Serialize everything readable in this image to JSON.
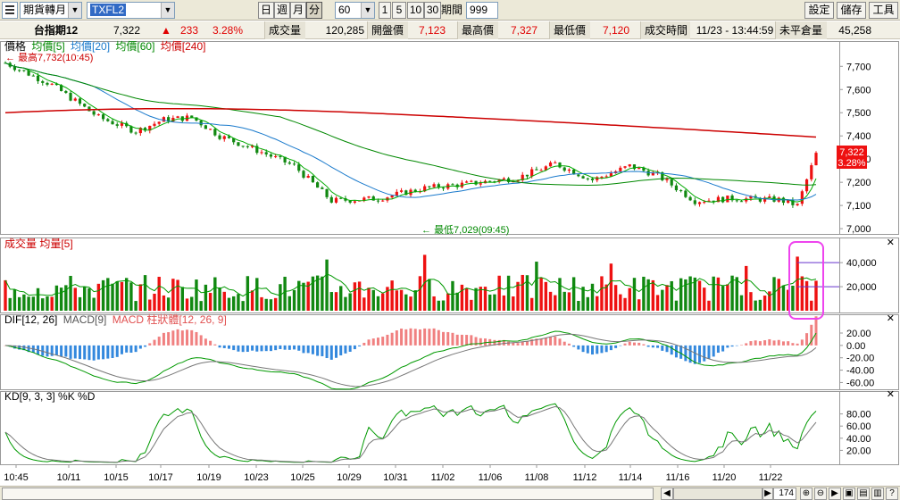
{
  "toolbar": {
    "product_select": "期貨轉月",
    "symbol_select": "TXFL2",
    "period_buttons": [
      "日",
      "週",
      "月",
      "分"
    ],
    "minutes_select": "60",
    "range_buttons": [
      "1",
      "5",
      "10",
      "30"
    ],
    "period_count_label": "期間",
    "period_count": "999",
    "settings_label": "設定",
    "save_label": "儲存",
    "tools_label": "工具"
  },
  "quote": {
    "name": "台指期12",
    "last": "7,322",
    "change_arrow": "▲",
    "change": "233",
    "change_pct": "3.28%",
    "volume_label": "成交量",
    "volume": "120,285",
    "open_label": "開盤價",
    "open": "7,123",
    "high_label": "最高價",
    "high": "7,327",
    "low_label": "最低價",
    "low": "7,120",
    "time_label": "成交時間",
    "time": "11/23 - 13:44:59",
    "oi_label": "未平倉量",
    "oi": "45,258"
  },
  "panels": {
    "price_legend": [
      {
        "text": "價格",
        "color": "#000000"
      },
      {
        "text": "均價[5]",
        "color": "#008800"
      },
      {
        "text": "均價[20]",
        "color": "#1a7acc"
      },
      {
        "text": "均價[60]",
        "color": "#008800"
      },
      {
        "text": "均價[240]",
        "color": "#cc0000"
      }
    ],
    "high_note": "最高7,732(10:45)",
    "low_note": "最低7,029(09:45)",
    "last_price_tag": "7,322",
    "last_pct_tag": "3.28%",
    "volume_legend": "成交量 均量[5]",
    "macd_legend_a": "DIF[12, 26]",
    "macd_legend_b": "MACD[9]",
    "macd_legend_c": "MACD 柱狀體[12, 26, 9]",
    "kd_legend": "KD[9, 3, 3] %K %D",
    "close_icon": "✕"
  },
  "chart_data": {
    "type": "candlestick",
    "price_axis": {
      "ticks": [
        7700,
        7600,
        7500,
        7400,
        7300,
        7200,
        7100,
        7000
      ],
      "range": [
        6985,
        7755
      ]
    },
    "volume_axis": {
      "ticks": [
        40000,
        20000
      ],
      "range": [
        0,
        52000
      ]
    },
    "macd_axis": {
      "ticks": [
        20,
        0,
        -20,
        -40,
        -60
      ],
      "range": [
        -68,
        33
      ]
    },
    "kd_axis": {
      "ticks": [
        80,
        60,
        40,
        20
      ],
      "range": [
        0,
        100
      ]
    },
    "x_axis_labels": [
      "10:45",
      "10/11",
      "10/15",
      "10/17",
      "10/19",
      "10/23",
      "10/25",
      "10/29",
      "10/31",
      "11/02",
      "11/06",
      "11/08",
      "11/12",
      "11/14",
      "11/16",
      "11/20",
      "11/22"
    ],
    "key_prices": {
      "ma240_start": 7500,
      "ma240_peak": 7550,
      "ma240_end": 7395,
      "first_open": 7715,
      "last_close": 7322
    }
  },
  "scrollbar": {
    "position": "174"
  }
}
